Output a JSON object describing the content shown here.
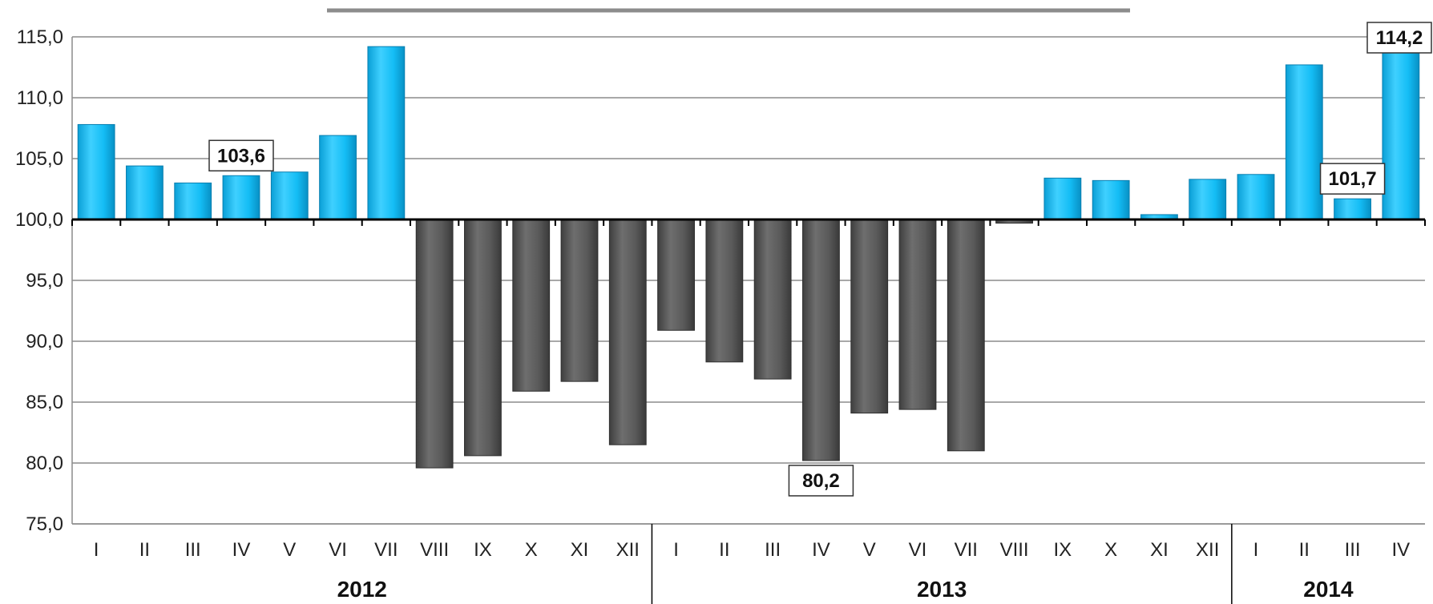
{
  "chart_data": {
    "type": "bar",
    "baseline": 100,
    "ylim": [
      75,
      115
    ],
    "yticks": [
      "75,0",
      "80,0",
      "85,0",
      "90,0",
      "95,0",
      "100,0",
      "105,0",
      "110,0",
      "115,0"
    ],
    "ytick_values": [
      75,
      80,
      85,
      90,
      95,
      100,
      105,
      110,
      115
    ],
    "grid": true,
    "categories": [
      "I",
      "II",
      "III",
      "IV",
      "V",
      "VI",
      "VII",
      "VIII",
      "IX",
      "X",
      "XI",
      "XII",
      "I",
      "II",
      "III",
      "IV",
      "V",
      "VI",
      "VII",
      "VIII",
      "IX",
      "X",
      "XI",
      "XII",
      "I",
      "II",
      "III",
      "IV"
    ],
    "values": [
      107.8,
      104.4,
      103.0,
      103.6,
      103.9,
      106.9,
      114.2,
      79.6,
      80.6,
      85.9,
      86.7,
      81.5,
      90.9,
      88.3,
      86.9,
      80.2,
      84.1,
      84.4,
      81.0,
      99.7,
      103.4,
      103.2,
      100.4,
      103.3,
      103.7,
      112.7,
      101.7,
      114.2
    ],
    "groups": [
      {
        "label": "2012",
        "start": 0,
        "count": 12
      },
      {
        "label": "2013",
        "start": 12,
        "count": 12
      },
      {
        "label": "2014",
        "start": 24,
        "count": 4
      }
    ],
    "data_labels": [
      {
        "index": 3,
        "text": "103,6"
      },
      {
        "index": 15,
        "text": "80,2"
      },
      {
        "index": 26,
        "text": "101,7"
      },
      {
        "index": 27,
        "text": "114,2"
      }
    ],
    "colors": {
      "above": "#12b8f0",
      "below": "#5a5a5a",
      "grid": "#8c8c8c",
      "axis": "#000000",
      "title_bar": "#8c8c8c"
    }
  }
}
